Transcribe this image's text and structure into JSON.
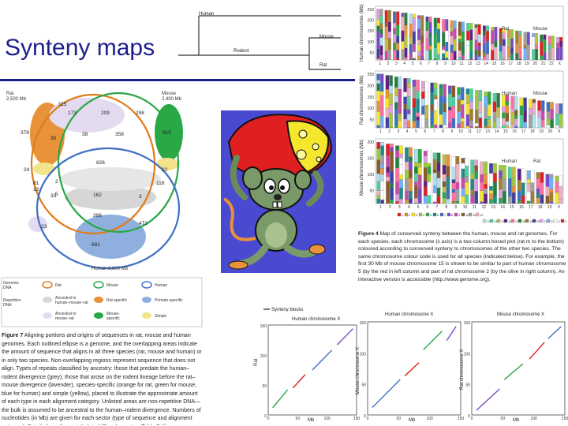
{
  "slide": {
    "title": "Synteny maps"
  },
  "tree": {
    "human": "Human",
    "rodent": "Rodent",
    "mouse": "Mouse",
    "rat": "Rat"
  },
  "venn": {
    "rat_label": "Rat",
    "rat_size": "2,500 Mb",
    "mouse_label": "Mouse",
    "mouse_size": "2,400 Mb",
    "human_label": "Human",
    "human_size": "2,800 Mb",
    "numbers": [
      "115",
      "173",
      "209",
      "298",
      "378",
      "30",
      "38",
      "358",
      "815",
      "24",
      "826",
      "22",
      "81",
      "13",
      "2",
      "33",
      "3",
      "118",
      "162",
      "5",
      "386",
      "471",
      "23",
      "681"
    ],
    "legend": {
      "genomic": "Genomic DNA",
      "repetitive": "Repetitive DNA",
      "rat": "Rat",
      "mouse": "Mouse",
      "human": "Human",
      "anc_hmr": "Ancestral to human–mouse–rat",
      "ratspecific": "Rat-specific",
      "primate": "Primate-specific",
      "anc_mr": "Ancestral to mouse–rat",
      "mousespecific": "Mouse-specific",
      "simple": "Simple"
    }
  },
  "fig7_caption": {
    "label": "Figure 7",
    "text": "Aligning portions and origins of sequences in rat, mouse and human genomes. Each outlined ellipse is a genome, and the overlapping areas indicate the amount of sequence that aligns in all three species (rat, mouse and human) or in only two species. Non-overlapping regions represent sequence that does not align. Types of repeats classified by ancestry: those that predate the human–rodent divergence (grey), those that arose on the rodent lineage before the rat–mouse divergence (lavender), species-specific (orange for rat, green for mouse, blue for human) and simple (yellow), placed to illustrate the approximate amount of each type in each alignment category. Unlisted areas are non-repetitive DNA—the bulk is assumed to be ancestral to the human–rodent divergence. Numbers of nucleotides (in Mb) are given for each sector (type of sequence and alignment category). Detailed results are tabulated (Supplementary Table S-1)."
  },
  "fig4_caption": {
    "label": "Figure 4",
    "text": "Map of conserved synteny between the human, mouse and rat genomes. For each species, each chromosome (x axis) is a two-column boxed plot (rat m to the bottom) coloured according to conserved synteny to chromosomes of the other two species. The same chromosome colour code is used for all species (indicated below). For example, the first 30 Mb of mouse chromosome 15 is shown to be similar to part of human chromosome 5 (by the red in left column and part of rat chromosome 2 (by the olive in right column). An interactive version is accessible (http://www.genome.org)."
  },
  "synteny": {
    "human_axis": "Human chromosomes (Mb)",
    "rat_axis": "Rat chromosomes (Mb)",
    "mouse_axis": "Mouse chromosomes (Mb)",
    "human_chroms": [
      "1",
      "2",
      "3",
      "4",
      "5",
      "6",
      "7",
      "8",
      "9",
      "10",
      "11",
      "12",
      "13",
      "14",
      "15",
      "16",
      "17",
      "18",
      "19",
      "20",
      "21",
      "22",
      "X"
    ],
    "rat_chroms": [
      "1",
      "2",
      "3",
      "4",
      "5",
      "6",
      "7",
      "8",
      "9",
      "10",
      "11",
      "12",
      "13",
      "14",
      "15",
      "16",
      "17",
      "18",
      "19",
      "20",
      "X"
    ],
    "mouse_chroms": [
      "1",
      "2",
      "3",
      "4",
      "5",
      "6",
      "7",
      "8",
      "9",
      "10",
      "11",
      "12",
      "13",
      "14",
      "15",
      "16",
      "17",
      "18",
      "19",
      "X"
    ],
    "yticks_human": [
      "250",
      "200",
      "150",
      "100",
      "50"
    ],
    "yticks_rat": [
      "250",
      "200",
      "150",
      "100",
      "50"
    ],
    "yticks_mouse": [
      "200",
      "150",
      "100",
      "50"
    ],
    "panel_a_labels": [
      "Rat",
      "Mouse"
    ],
    "panel_b_labels": [
      "Human",
      "Mouse"
    ],
    "panel_c_labels": [
      "Human",
      "Rat"
    ],
    "color_key": [
      "1",
      "2",
      "3",
      "4",
      "5",
      "6",
      "7",
      "8",
      "9",
      "10",
      "11",
      "12",
      "13",
      "14",
      "15",
      "16",
      "17",
      "18",
      "19",
      "20",
      "21",
      "22",
      "X",
      "Y"
    ]
  },
  "xplots": {
    "legend": "Synteny blocks",
    "p1_title": "Human chromosome X",
    "p2_title": "Human chromosome X",
    "p3_title": "Mouse chromosome X",
    "p1_ylabel": "Rat",
    "p2_ylabel": "Mouse chromosome X",
    "p3_ylabel": "Rat chromosome X",
    "p1_xlabel": "Mb",
    "p2_xlabel": "Mb",
    "p3_xlabel": "Mb",
    "ticks": [
      "0",
      "50",
      "100",
      "150"
    ],
    "yticks": [
      "150",
      "100",
      "50",
      "0"
    ]
  },
  "colors": {
    "title_blue": "#1c1f8a",
    "rat_orange": "#e8923a",
    "mouse_green": "#2aa846",
    "human_blue": "#3f6fc4",
    "cartoon_bg": "#4a4ad0"
  }
}
